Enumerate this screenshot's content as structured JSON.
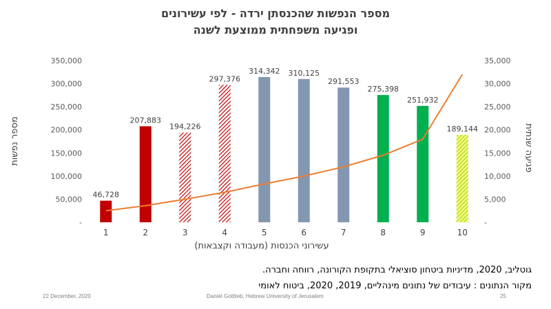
{
  "chart_data": {
    "type": "bar",
    "title_line1": "מספר הנפשות שהכנסתן ירדה - לפי עשירונים",
    "title_line2": "ופגיעה משפחתית ממוצעת לשנה",
    "xlabel": "עשירוני הכנסות (מעבודה וקצבאות)",
    "ylabel_left": "מספר נפשות",
    "ylabel_right": "פגיעה שנתית",
    "categories": [
      "1",
      "2",
      "3",
      "4",
      "5",
      "6",
      "7",
      "8",
      "9",
      "10"
    ],
    "bars": {
      "values": [
        46728,
        207883,
        194226,
        297376,
        314342,
        310125,
        291553,
        275398,
        251932,
        189144
      ],
      "labels": [
        "46,728",
        "207,883",
        "194,226",
        "297,376",
        "314,342",
        "310,125",
        "291,553",
        "275,398",
        "251,932",
        "189,144"
      ],
      "colors": [
        "#c00000",
        "#c00000",
        "#c00000",
        "#c00000",
        "#8497b0",
        "#8497b0",
        "#8497b0",
        "#00b050",
        "#00b050",
        "#92d050"
      ],
      "patterns": [
        "solid",
        "solid",
        "hatch",
        "hatch",
        "solid",
        "solid",
        "solid",
        "solid",
        "solid",
        "hatch"
      ]
    },
    "line": {
      "values": [
        2500,
        3600,
        5000,
        6500,
        8300,
        10000,
        12000,
        14500,
        18000,
        32000
      ],
      "color": "#ed7d31"
    },
    "ylim_left": [
      0,
      350000
    ],
    "ylim_right": [
      0,
      35000
    ],
    "yticks_left": [
      "-",
      "50,000",
      "100,000",
      "150,000",
      "200,000",
      "250,000",
      "300,000",
      "350,000"
    ],
    "yticks_right": [
      "-",
      "5,000",
      "10,000",
      "15,000",
      "20,000",
      "25,000",
      "30,000",
      "35,000"
    ],
    "grid": false,
    "legend": "none"
  },
  "notes": {
    "citation": "גוטליב, 2020, מדיניות ביטחון סוציאלי בתקופת הקורונה, רווחה וחברה.",
    "source": "מקור הנתונים : עיבודים של נתונים מינהליים, 2019, 2020, ביטוח לאומי"
  },
  "footer": {
    "date": "22 December, 2020",
    "author": "Daniel Gottlieb, Hebrew University of Jerusalem",
    "page": "25"
  }
}
